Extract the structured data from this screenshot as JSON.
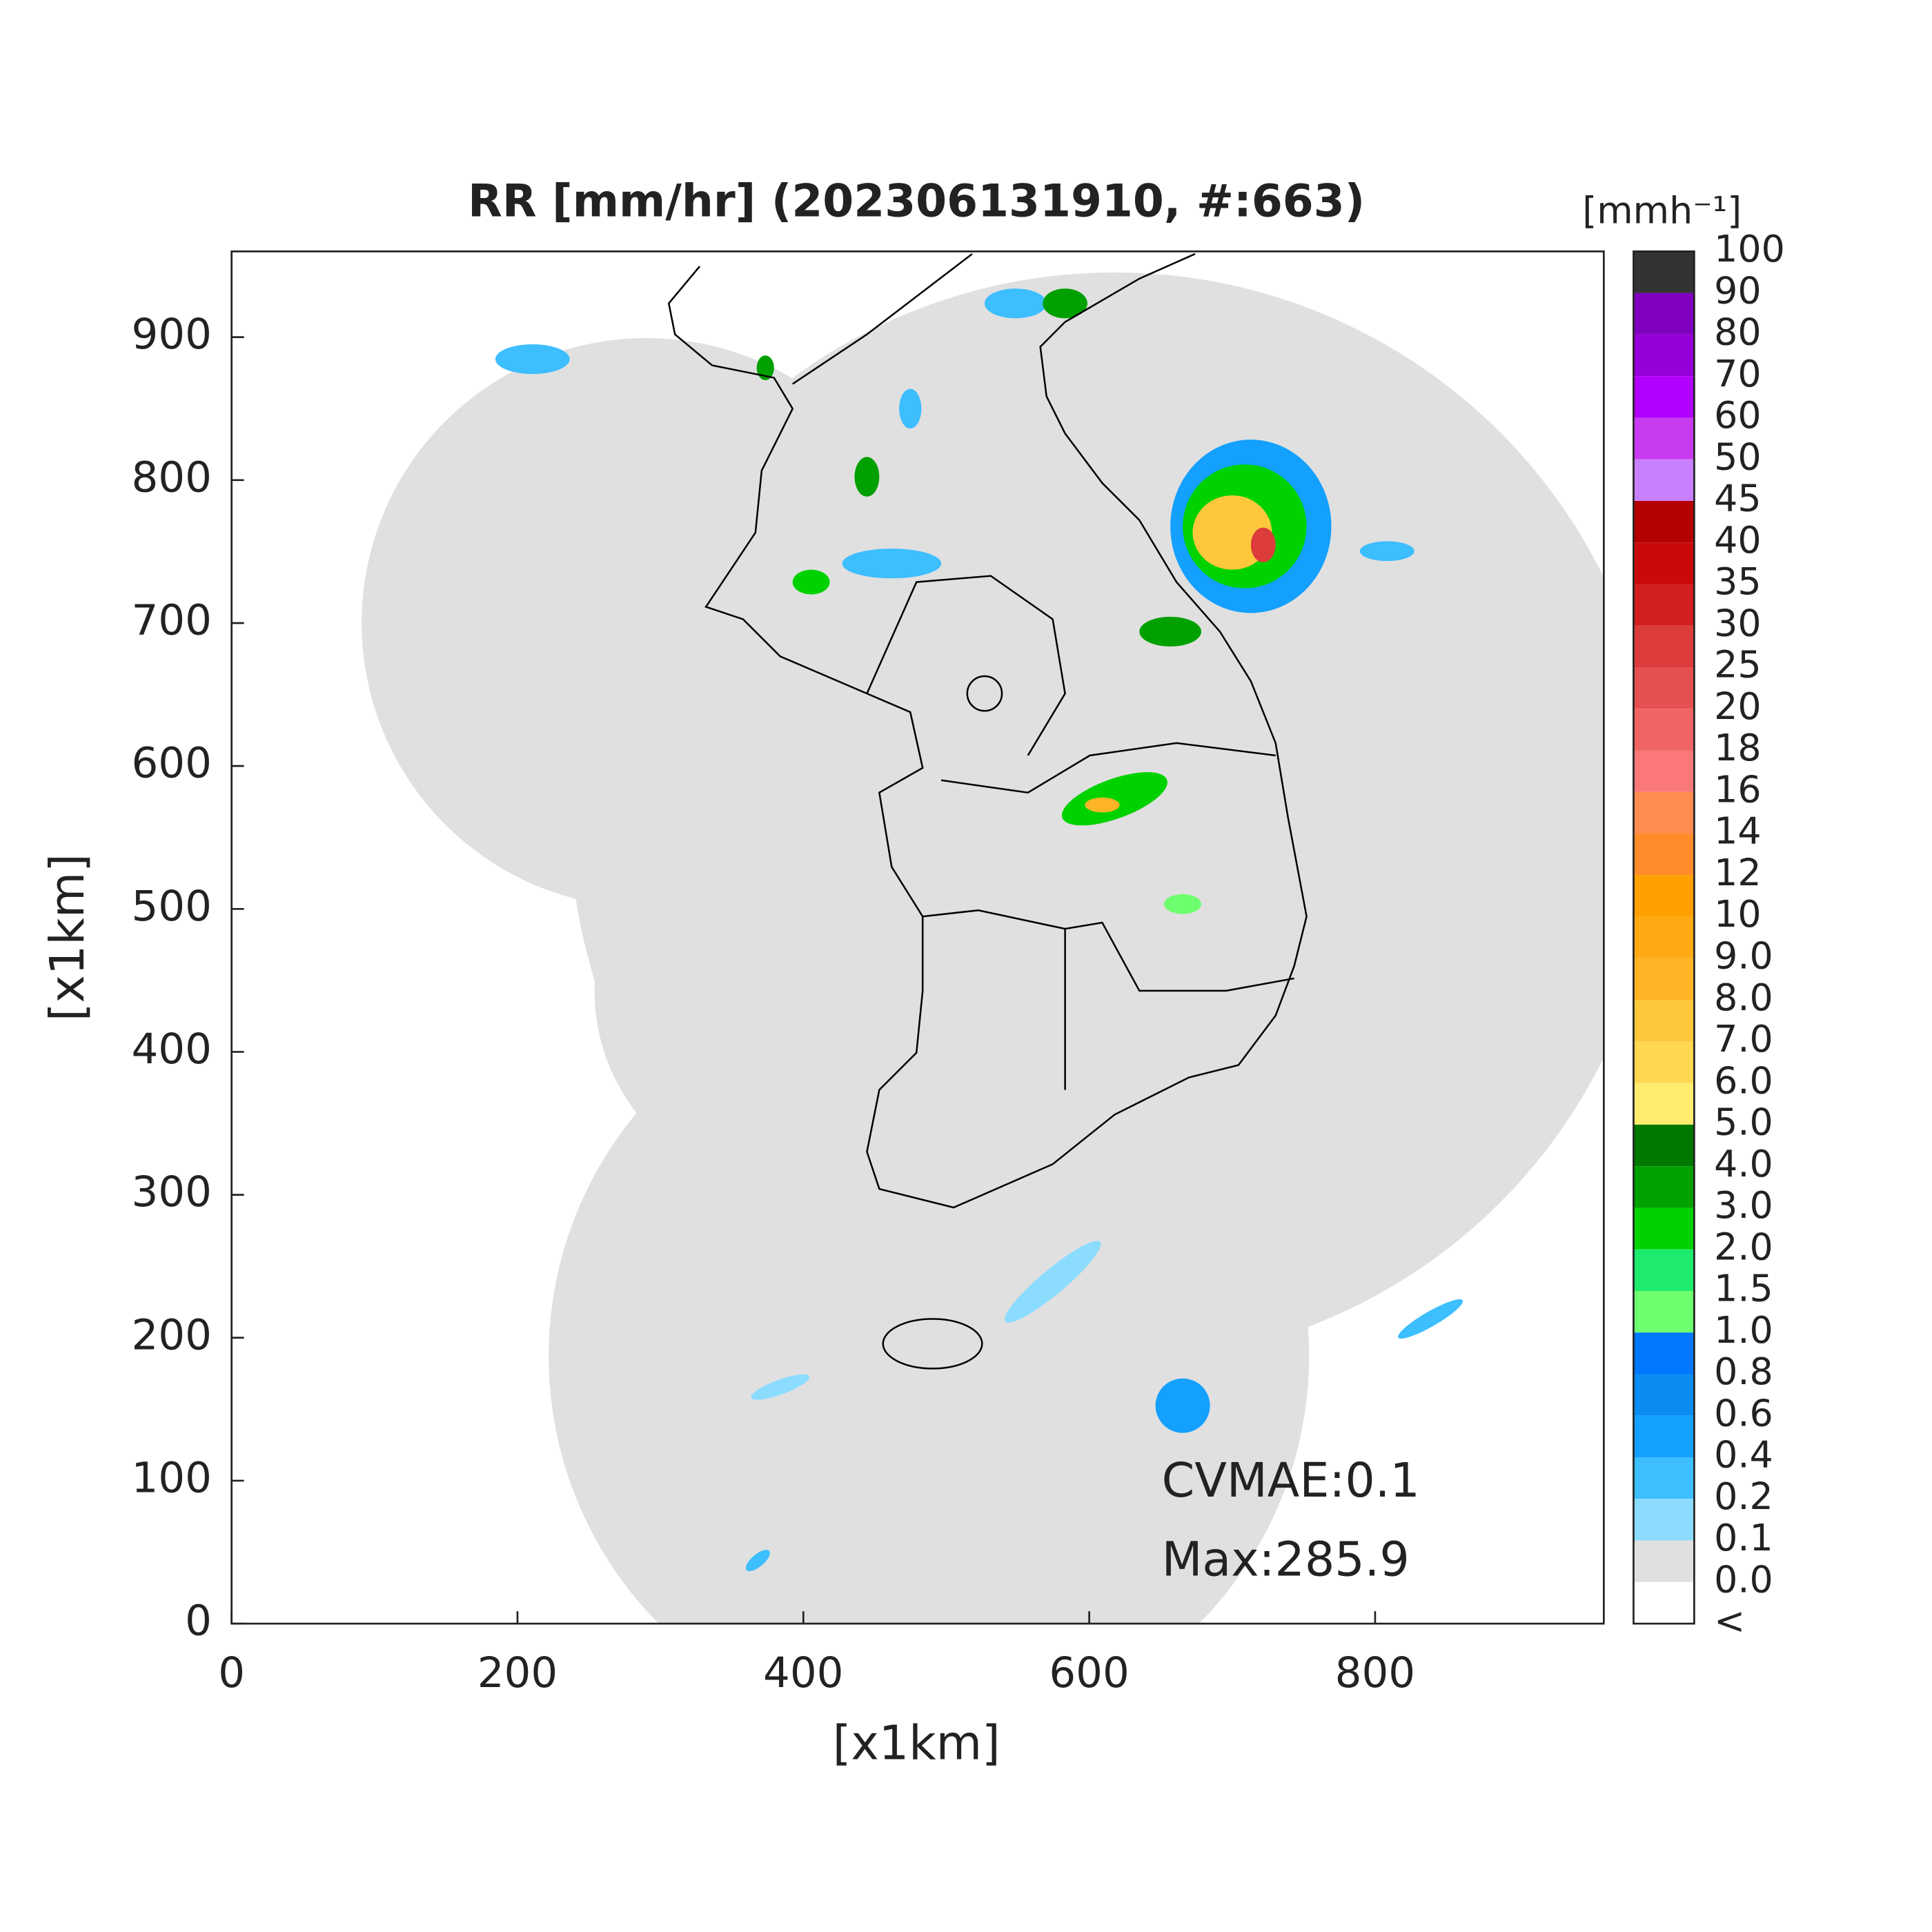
{
  "chart_data": {
    "type": "map",
    "title": "RR [mm/hr] (202306131910, #:663)",
    "xlabel": "[x1km]",
    "ylabel": "[x1km]",
    "xlim": [
      0,
      960
    ],
    "ylim": [
      0,
      960
    ],
    "xticks": [
      0,
      200,
      400,
      600,
      800
    ],
    "yticks": [
      0,
      100,
      200,
      300,
      400,
      500,
      600,
      700,
      800,
      900
    ],
    "annotations": [
      "CVMAE:0.1",
      "Max:285.9"
    ],
    "colorbar": {
      "unit": "[mmh⁻¹]",
      "labels": [
        "100",
        "90",
        "80",
        "70",
        "60",
        "50",
        "45",
        "40",
        "35",
        "30",
        "25",
        "20",
        "18",
        "16",
        "14",
        "12",
        "10",
        "9.0",
        "8.0",
        "7.0",
        "6.0",
        "5.0",
        "4.0",
        "3.0",
        "2.0",
        "1.5",
        "1.0",
        "0.8",
        "0.6",
        "0.4",
        "0.2",
        "0.1",
        "0.0",
        "<"
      ],
      "colors": [
        "#333333",
        "#7f00bf",
        "#9600d8",
        "#b200ff",
        "#c83cf0",
        "#c880ff",
        "#b40000",
        "#c80a0a",
        "#d21e1e",
        "#dc3c3c",
        "#e65050",
        "#f06464",
        "#fa7878",
        "#ff8c50",
        "#ff8c28",
        "#ffa000",
        "#ffaa14",
        "#ffb428",
        "#ffc83c",
        "#ffd750",
        "#ffeb6e",
        "#007800",
        "#00a000",
        "#00d200",
        "#1eeb6e",
        "#6eff6e",
        "#0078ff",
        "#0a8cf0",
        "#14a0ff",
        "#3cbeff",
        "#8cdcff",
        "#e0e0e0",
        "#ffffff"
      ]
    }
  }
}
